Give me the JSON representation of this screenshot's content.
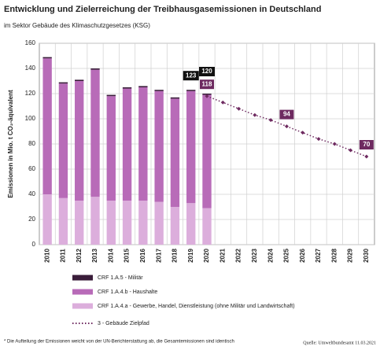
{
  "chart_data": {
    "type": "bar",
    "title": "Entwicklung und Zielerreichung der Treibhausgasemissionen in Deutschland",
    "subtitle": "im Sektor Gebäude des Klimaschutzgesetzes (KSG)",
    "y_label": "Emissionen in Mio. t CO₂-äquivalent",
    "categories": [
      "2010",
      "2011",
      "2012",
      "2013",
      "2014",
      "2015",
      "2016",
      "2017",
      "2018",
      "2019",
      "2020",
      "2021",
      "2022",
      "2023",
      "2024",
      "2025",
      "2026",
      "2027",
      "2028",
      "2029",
      "2030"
    ],
    "series": [
      {
        "name": "CRF 1.A.5 - Militär",
        "color": "#3a1d3a",
        "values": [
          1,
          1,
          1,
          1,
          1,
          1,
          1,
          1,
          1,
          1,
          1,
          null,
          null,
          null,
          null,
          null,
          null,
          null,
          null,
          null,
          null
        ]
      },
      {
        "name": "CRF 1.A.4.b - Haushalte",
        "color": "#b86bb8",
        "values": [
          108,
          91,
          95,
          101,
          83,
          89,
          90,
          88,
          86,
          89,
          90,
          null,
          null,
          null,
          null,
          null,
          null,
          null,
          null,
          null,
          null
        ]
      },
      {
        "name": "CRF 1.A.4.a - Gewerbe, Handel, Dienstleistung (ohne Militär und Landwirtschaft)",
        "color": "#dcaedc",
        "values": [
          40,
          37,
          35,
          38,
          35,
          35,
          35,
          34,
          30,
          33,
          29,
          null,
          null,
          null,
          null,
          null,
          null,
          null,
          null,
          null,
          null
        ]
      },
      {
        "name": "3 - Gebäude Zielpfad",
        "color": "#6e2a60",
        "kind": "line",
        "values": [
          null,
          null,
          null,
          null,
          null,
          null,
          null,
          null,
          null,
          null,
          118,
          113,
          108,
          103,
          99,
          94,
          89,
          84,
          80,
          75,
          70
        ],
        "value_labels": [
          null,
          null,
          null,
          null,
          null,
          null,
          null,
          null,
          null,
          null,
          "118",
          null,
          null,
          null,
          null,
          "94",
          null,
          null,
          null,
          null,
          "70"
        ]
      }
    ],
    "annotations": [
      "123",
      "120"
    ],
    "ylim": [
      0,
      160
    ],
    "yticks": [
      0,
      20,
      40,
      60,
      80,
      100,
      120,
      140,
      160
    ],
    "grid": true,
    "footnote": "* Die Aufteilung der Emissionen weicht von der UN-Berichterstattung ab, die Gesamtemissionen sind identisch",
    "source": "Quelle: Umweltbundesamt 11.03.2021"
  }
}
